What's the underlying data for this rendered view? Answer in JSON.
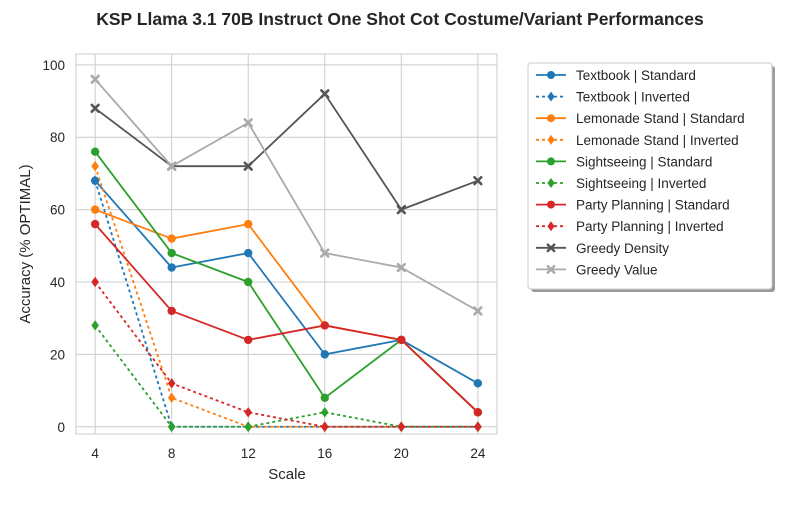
{
  "chart_data": {
    "type": "line",
    "title": "KSP Llama 3.1 70B Instruct One Shot Cot Costume/Variant Performances",
    "xlabel": "Scale",
    "ylabel": "Accuracy (% OPTIMAL)",
    "x": [
      4,
      8,
      12,
      16,
      20,
      24
    ],
    "xlim": [
      3,
      25
    ],
    "ylim": [
      -2,
      103
    ],
    "yticks": [
      0,
      20,
      40,
      60,
      80,
      100
    ],
    "grid": true,
    "legend_position": "outside-right",
    "series": [
      {
        "name": "Textbook | Standard",
        "color": "#1f77b4",
        "dash": false,
        "marker": "circle",
        "values": [
          68,
          44,
          48,
          20,
          24,
          12
        ]
      },
      {
        "name": "Textbook | Inverted",
        "color": "#1f77b4",
        "dash": true,
        "marker": "diamond",
        "values": [
          68,
          0,
          0,
          0,
          0,
          0
        ]
      },
      {
        "name": "Lemonade Stand | Standard",
        "color": "#ff7f0e",
        "dash": false,
        "marker": "circle",
        "values": [
          60,
          52,
          56,
          28,
          24,
          4
        ]
      },
      {
        "name": "Lemonade Stand | Inverted",
        "color": "#ff7f0e",
        "dash": true,
        "marker": "diamond",
        "values": [
          72,
          8,
          0,
          0,
          0,
          0
        ]
      },
      {
        "name": "Sightseeing | Standard",
        "color": "#2ca02c",
        "dash": false,
        "marker": "circle",
        "values": [
          76,
          48,
          40,
          8,
          24,
          4
        ]
      },
      {
        "name": "Sightseeing | Inverted",
        "color": "#2ca02c",
        "dash": true,
        "marker": "diamond",
        "values": [
          28,
          0,
          0,
          4,
          0,
          0
        ]
      },
      {
        "name": "Party Planning | Standard",
        "color": "#d62728",
        "dash": false,
        "marker": "circle",
        "values": [
          56,
          32,
          24,
          28,
          24,
          4
        ]
      },
      {
        "name": "Party Planning | Inverted",
        "color": "#d62728",
        "dash": true,
        "marker": "diamond",
        "values": [
          40,
          12,
          4,
          0,
          0,
          0
        ]
      },
      {
        "name": "Greedy Density",
        "color": "#555555",
        "dash": false,
        "marker": "x",
        "values": [
          88,
          72,
          72,
          92,
          60,
          68
        ]
      },
      {
        "name": "Greedy Value",
        "color": "#aaaaaa",
        "dash": false,
        "marker": "x",
        "values": [
          96,
          72,
          84,
          48,
          44,
          32
        ]
      }
    ]
  }
}
